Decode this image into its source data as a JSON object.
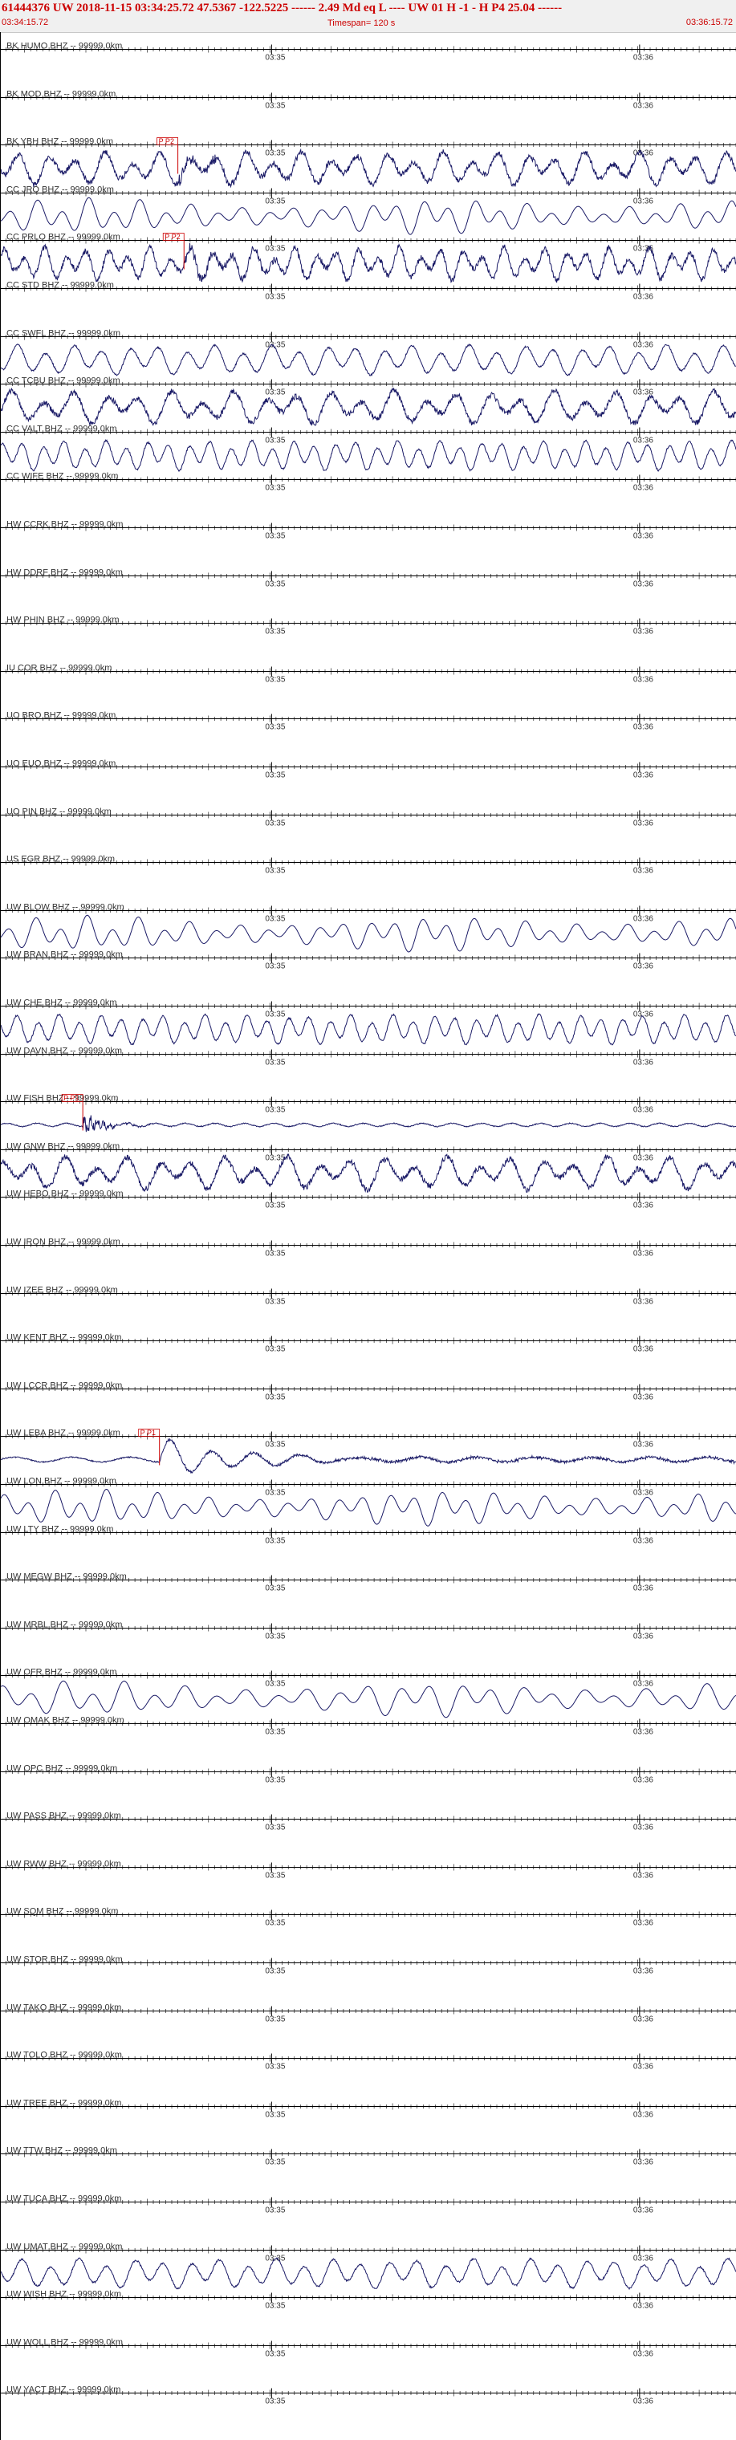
{
  "header": {
    "title": "61444376 UW 2018-11-15 03:34:25.72   47.5367 -122.5225 ------   2.49 Md  eq  L ----     UW 01  H  -1  -  H P4   25.04 ------",
    "start_time": "03:34:15.72",
    "timespan": "Timespan= 120 s",
    "end_time": "03:36:15.72"
  },
  "colors": {
    "trace": "#1a1a66",
    "axis": "#000000",
    "pick": "#cc0000",
    "header_bg": "#f0f0f0"
  },
  "chart_data": {
    "type": "line",
    "title": "Timespan= 120 s",
    "x_range_s": [
      0,
      120
    ],
    "tick_marks": [
      {
        "label": "03:35",
        "t": 44.28
      },
      {
        "label": "03:36",
        "t": 104.28
      }
    ],
    "channels": [
      {
        "label": "BK HUMO BHZ -- 99999.0km",
        "signal": "none"
      },
      {
        "label": "BK MOD BHZ -- 99999.0km",
        "signal": "none"
      },
      {
        "label": "BK YBH BHZ -- 99999.0km",
        "signal": "strong_noisy",
        "pick": {
          "t": 29,
          "label": "P P2"
        }
      },
      {
        "label": "CC JRO BHZ -- 99999.0km",
        "signal": "smooth"
      },
      {
        "label": "CC PRLO BHZ -- 99999.0km",
        "signal": "strong_noisy",
        "pick": {
          "t": 30,
          "label": "P P2"
        }
      },
      {
        "label": "CC STD BHZ -- 99999.0km",
        "signal": "none"
      },
      {
        "label": "CC SWFL BHZ -- 99999.0km",
        "signal": "moderate"
      },
      {
        "label": "CC TCBU BHZ -- 99999.0km",
        "signal": "strong_noisy"
      },
      {
        "label": "CC VALT BHZ -- 99999.0km",
        "signal": "moderate"
      },
      {
        "label": "CC WIFE BHZ -- 99999.0km",
        "signal": "none"
      },
      {
        "label": "HW CCRK BHZ -- 99999.0km",
        "signal": "none"
      },
      {
        "label": "HW DDRF BHZ -- 99999.0km",
        "signal": "none"
      },
      {
        "label": "HW PHIN BHZ -- 99999.0km",
        "signal": "none"
      },
      {
        "label": "IU COR BHZ -- 99999.0km",
        "signal": "none"
      },
      {
        "label": "UO BRO BHZ -- 99999.0km",
        "signal": "none"
      },
      {
        "label": "UO EUO BHZ -- 99999.0km",
        "signal": "none"
      },
      {
        "label": "UO PIN BHZ -- 99999.0km",
        "signal": "none"
      },
      {
        "label": "US EGR BHZ -- 99999.0km",
        "signal": "none"
      },
      {
        "label": "UW BLOW BHZ -- 99999.0km",
        "signal": "smooth"
      },
      {
        "label": "UW BRAN BHZ -- 99999.0km",
        "signal": "none"
      },
      {
        "label": "UW CHE BHZ -- 99999.0km",
        "signal": "moderate"
      },
      {
        "label": "UW DAVN BHZ -- 99999.0km",
        "signal": "none"
      },
      {
        "label": "UW FISH BHZ -- 99999.0km",
        "signal": "event_small",
        "pick": {
          "t": 13.5,
          "label": "P P1"
        }
      },
      {
        "label": "UW GNW BHZ -- 99999.0km",
        "signal": "strong_noisy"
      },
      {
        "label": "UW HEBO BHZ -- 99999.0km",
        "signal": "none"
      },
      {
        "label": "UW IRON BHZ -- 99999.0km",
        "signal": "none"
      },
      {
        "label": "UW IZEE BHZ -- 99999.0km",
        "signal": "none"
      },
      {
        "label": "UW KENT BHZ -- 99999.0km",
        "signal": "none"
      },
      {
        "label": "UW LCCR BHZ -- 99999.0km",
        "signal": "none"
      },
      {
        "label": "UW LEBA BHZ -- 99999.0km",
        "signal": "event_large",
        "pick": {
          "t": 26,
          "label": "P P1"
        }
      },
      {
        "label": "UW LON BHZ -- 99999.0km",
        "signal": "smooth"
      },
      {
        "label": "UW LTY BHZ -- 99999.0km",
        "signal": "none"
      },
      {
        "label": "UW MEGW BHZ -- 99999.0km",
        "signal": "none"
      },
      {
        "label": "UW MRBL BHZ -- 99999.0km",
        "signal": "none"
      },
      {
        "label": "UW OFR BHZ -- 99999.0km",
        "signal": "smooth"
      },
      {
        "label": "UW OMAK BHZ -- 99999.0km",
        "signal": "none"
      },
      {
        "label": "UW OPC BHZ -- 99999.0km",
        "signal": "none"
      },
      {
        "label": "UW PASS BHZ -- 99999.0km",
        "signal": "none"
      },
      {
        "label": "UW RWW BHZ -- 99999.0km",
        "signal": "none"
      },
      {
        "label": "UW SQM BHZ -- 99999.0km",
        "signal": "none"
      },
      {
        "label": "UW STOR BHZ -- 99999.0km",
        "signal": "none"
      },
      {
        "label": "UW TAKO BHZ -- 99999.0km",
        "signal": "none"
      },
      {
        "label": "UW TOLO BHZ -- 99999.0km",
        "signal": "none"
      },
      {
        "label": "UW TREE BHZ -- 99999.0km",
        "signal": "none"
      },
      {
        "label": "UW TTW BHZ -- 99999.0km",
        "signal": "none"
      },
      {
        "label": "UW TUCA BHZ -- 99999.0km",
        "signal": "none"
      },
      {
        "label": "UW UMAT BHZ -- 99999.0km",
        "signal": "moderate"
      },
      {
        "label": "UW WISH BHZ -- 99999.0km",
        "signal": "none"
      },
      {
        "label": "UW WOLL BHZ -- 99999.0km",
        "signal": "none"
      },
      {
        "label": "UW YACT BHZ -- 99999.0km",
        "signal": "none"
      }
    ]
  }
}
